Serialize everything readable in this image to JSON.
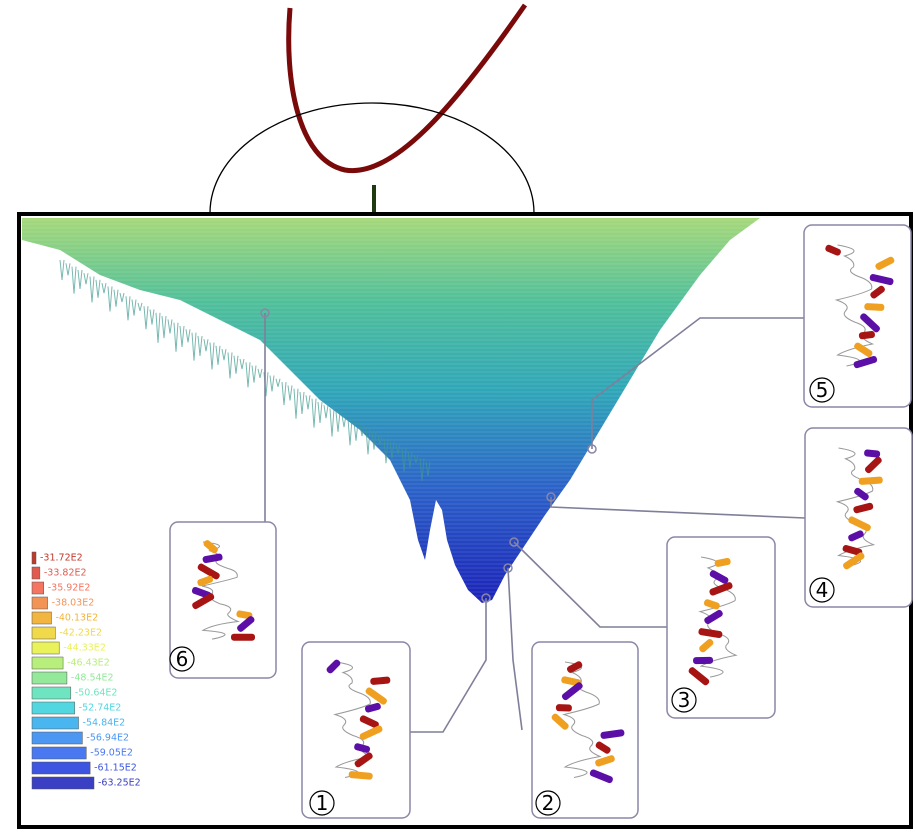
{
  "legend": {
    "entries": [
      {
        "label": "-31.72E2",
        "color": "#c0392b"
      },
      {
        "label": "-33.82E2",
        "color": "#e25a4e"
      },
      {
        "label": "-35.92E2",
        "color": "#f47561"
      },
      {
        "label": "-38.03E2",
        "color": "#f39457"
      },
      {
        "label": "-40.13E2",
        "color": "#f2b53f"
      },
      {
        "label": "-42.23E2",
        "color": "#f0d94a"
      },
      {
        "label": "-44.33E2",
        "color": "#e9f25a"
      },
      {
        "label": "-46.43E2",
        "color": "#b8ef7c"
      },
      {
        "label": "-48.54E2",
        "color": "#93e89a"
      },
      {
        "label": "-50.64E2",
        "color": "#6fe4c0"
      },
      {
        "label": "-52.74E2",
        "color": "#52d6e0"
      },
      {
        "label": "-54.84E2",
        "color": "#4ab6ef"
      },
      {
        "label": "-56.94E2",
        "color": "#4b97f2"
      },
      {
        "label": "-59.05E2",
        "color": "#4a78f0"
      },
      {
        "label": "-61.15E2",
        "color": "#3d55e0"
      },
      {
        "label": "-63.25E2",
        "color": "#3a3fc4"
      }
    ]
  },
  "callouts": [
    {
      "label": "1"
    },
    {
      "label": "2"
    },
    {
      "label": "3"
    },
    {
      "label": "4"
    },
    {
      "label": "5"
    },
    {
      "label": "6"
    }
  ]
}
